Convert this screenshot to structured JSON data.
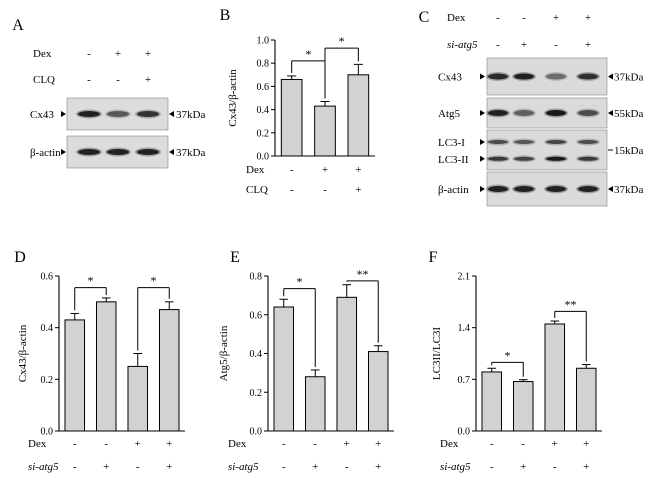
{
  "panels": {
    "A": {
      "letter": "A",
      "rows": [
        {
          "label": "Dex",
          "signs": [
            "-",
            "+",
            "+"
          ]
        },
        {
          "label": "CLQ",
          "signs": [
            "-",
            "-",
            "+"
          ]
        }
      ],
      "blots": [
        {
          "label": "Cx43",
          "size": "37kDa",
          "intensity": [
            0.85,
            0.55,
            0.75
          ]
        },
        {
          "label": "β-actin",
          "size": "37kDa",
          "intensity": [
            0.85,
            0.85,
            0.85
          ]
        }
      ]
    },
    "C": {
      "letter": "C",
      "rows": [
        {
          "label": "Dex",
          "italic": false,
          "signs": [
            "-",
            "-",
            "+",
            "+"
          ]
        },
        {
          "label": "si-atg5",
          "italic": true,
          "signs": [
            "-",
            "+",
            "-",
            "+"
          ]
        }
      ],
      "blots": [
        {
          "labels": [
            "Cx43"
          ],
          "sizes": [
            "37kDa"
          ],
          "bands": [
            [
              0.8,
              0.85,
              0.45,
              0.75
            ]
          ]
        },
        {
          "labels": [
            "Atg5"
          ],
          "sizes": [
            "55kDa"
          ],
          "bands": [
            [
              0.85,
              0.5,
              0.9,
              0.6
            ]
          ]
        },
        {
          "labels": [
            "LC3-I",
            "LC3-II"
          ],
          "sizes": [
            "15kDa"
          ],
          "bands": [
            [
              0.6,
              0.55,
              0.65,
              0.6
            ],
            [
              0.7,
              0.65,
              0.9,
              0.7
            ]
          ]
        },
        {
          "labels": [
            "β-actin"
          ],
          "sizes": [
            "37kDa"
          ],
          "bands": [
            [
              0.85,
              0.85,
              0.85,
              0.85
            ]
          ]
        }
      ]
    }
  },
  "chart_data": [
    {
      "panel": "B",
      "letter": "B",
      "type": "bar",
      "ylabel": "Cx43/β-actin",
      "ylim": [
        0,
        1.0
      ],
      "yticks": [
        "0.0",
        "0.2",
        "0.4",
        "0.6",
        "0.8",
        "1.0"
      ],
      "values": [
        0.66,
        0.43,
        0.7
      ],
      "errors": [
        0.03,
        0.04,
        0.09
      ],
      "conditions": [
        {
          "label": "Dex",
          "italic": false,
          "signs": [
            "-",
            "+",
            "+"
          ]
        },
        {
          "label": "CLQ",
          "italic": false,
          "signs": [
            "-",
            "-",
            "+"
          ]
        }
      ],
      "significance": [
        {
          "pair": [
            0,
            1
          ],
          "label": "*",
          "y": 0.82
        },
        {
          "pair": [
            1,
            2
          ],
          "label": "*",
          "y": 0.93
        }
      ]
    },
    {
      "panel": "D",
      "letter": "D",
      "type": "bar",
      "ylabel": "Cx43/β-actin",
      "ylim": [
        0,
        0.6
      ],
      "yticks": [
        "0.0",
        "0.2",
        "0.4",
        "0.6"
      ],
      "values": [
        0.43,
        0.5,
        0.25,
        0.47
      ],
      "errors": [
        0.025,
        0.015,
        0.05,
        0.03
      ],
      "conditions": [
        {
          "label": "Dex",
          "italic": false,
          "signs": [
            "-",
            "-",
            "+",
            "+"
          ]
        },
        {
          "label": "si-atg5",
          "italic": true,
          "signs": [
            "-",
            "+",
            "-",
            "+"
          ]
        }
      ],
      "significance": [
        {
          "pair": [
            0,
            1
          ],
          "label": "*",
          "y": 0.555
        },
        {
          "pair": [
            2,
            3
          ],
          "label": "*",
          "y": 0.555
        }
      ]
    },
    {
      "panel": "E",
      "letter": "E",
      "type": "bar",
      "ylabel": "Atg5/β-actin",
      "ylim": [
        0,
        0.8
      ],
      "yticks": [
        "0.0",
        "0.2",
        "0.4",
        "0.6",
        "0.8"
      ],
      "values": [
        0.64,
        0.28,
        0.69,
        0.41
      ],
      "errors": [
        0.04,
        0.035,
        0.065,
        0.03
      ],
      "conditions": [
        {
          "label": "Dex",
          "italic": false,
          "signs": [
            "-",
            "-",
            "+",
            "+"
          ]
        },
        {
          "label": "si-atg5",
          "italic": true,
          "signs": [
            "-",
            "+",
            "-",
            "+"
          ]
        }
      ],
      "significance": [
        {
          "pair": [
            0,
            1
          ],
          "label": "*",
          "y": 0.735
        },
        {
          "pair": [
            2,
            3
          ],
          "label": "**",
          "y": 0.775
        }
      ]
    },
    {
      "panel": "F",
      "letter": "F",
      "type": "bar",
      "ylabel": "LC3II/LC3I",
      "ylim": [
        0,
        2.1
      ],
      "yticks": [
        "0.0",
        "0.7",
        "1.4",
        "2.1"
      ],
      "values": [
        0.8,
        0.67,
        1.45,
        0.85
      ],
      "errors": [
        0.05,
        0.025,
        0.04,
        0.05
      ],
      "conditions": [
        {
          "label": "Dex",
          "italic": false,
          "signs": [
            "-",
            "-",
            "+",
            "+"
          ]
        },
        {
          "label": "si-atg5",
          "italic": true,
          "signs": [
            "-",
            "+",
            "-",
            "+"
          ]
        }
      ],
      "significance": [
        {
          "pair": [
            0,
            1
          ],
          "label": "*",
          "y": 0.93
        },
        {
          "pair": [
            2,
            3
          ],
          "label": "**",
          "y": 1.62
        }
      ]
    }
  ]
}
